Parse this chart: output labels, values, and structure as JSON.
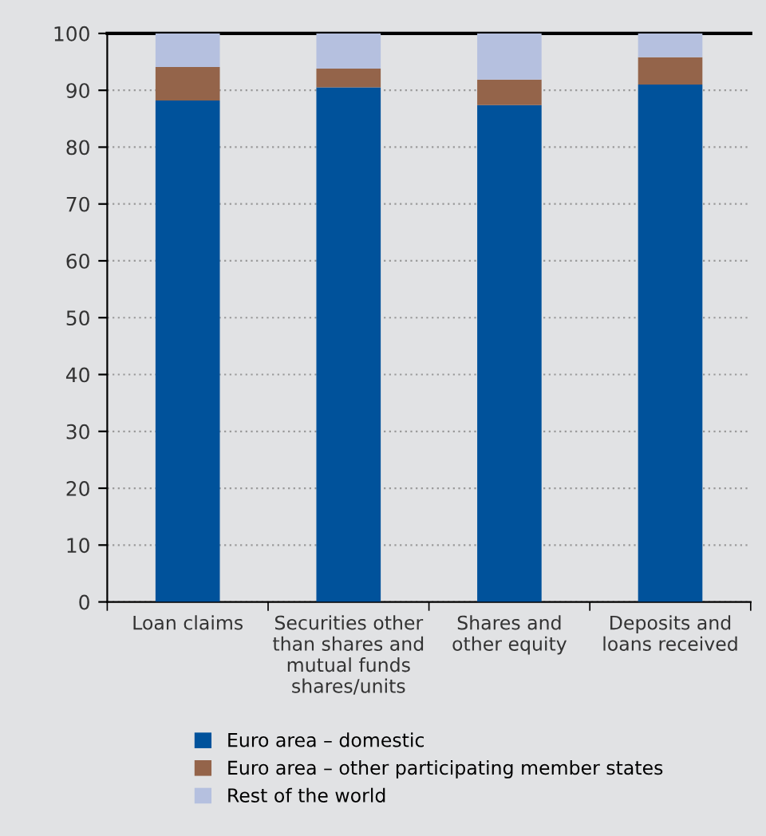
{
  "chart_data": {
    "type": "bar",
    "stacked": true,
    "categories": [
      "Loan claims",
      "Securities other\nthan shares and\nmutual funds\nshares/units",
      "Shares and\nother equity",
      "Deposits and\nloans received"
    ],
    "series": [
      {
        "name": "Euro area – domestic",
        "color": "#00529b",
        "values": [
          88.2,
          90.5,
          87.4,
          91.0
        ]
      },
      {
        "name": "Euro area – other participating member states",
        "color": "#94644a",
        "values": [
          5.9,
          3.3,
          4.5,
          4.8
        ]
      },
      {
        "name": "Rest of the world",
        "color": "#b5c0df",
        "values": [
          5.9,
          6.2,
          8.1,
          4.2
        ]
      }
    ],
    "ylim": [
      0,
      100
    ],
    "yticks": [
      0,
      10,
      20,
      30,
      40,
      50,
      60,
      70,
      80,
      90,
      100
    ],
    "grid": "y",
    "legend": "bottom"
  }
}
